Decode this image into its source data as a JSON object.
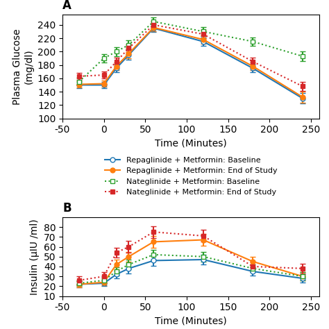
{
  "chart_data": [
    {
      "type": "line",
      "title": "A",
      "xlabel": "Time (Minutes)",
      "ylabel": "Plasma Glucose\n(mg/dl)",
      "x": [
        -30,
        0,
        15,
        30,
        60,
        120,
        180,
        240
      ],
      "xlim": [
        -50,
        260
      ],
      "xticks": [
        -50,
        0,
        50,
        100,
        150,
        200,
        250
      ],
      "ylim": [
        100,
        255
      ],
      "yticks": [
        100,
        120,
        140,
        160,
        180,
        200,
        220,
        240
      ],
      "legend": "upper center",
      "series": [
        {
          "name": "Repaglinide + Metformin: Baseline",
          "marker": "circle_open",
          "line_style": "solid",
          "values": [
            150,
            150,
            175,
            195,
            235,
            215,
            175,
            130
          ],
          "errors": [
            5,
            5,
            6,
            7,
            6,
            6,
            6,
            8
          ]
        },
        {
          "name": "Repaglinide + Metformin: End of Study",
          "marker": "circle",
          "line_style": "solid",
          "values": [
            151,
            152,
            178,
            197,
            236,
            218,
            178,
            132
          ],
          "errors": [
            5,
            5,
            6,
            7,
            6,
            6,
            6,
            8
          ]
        },
        {
          "name": "Nateglinide + Metformin: Baseline",
          "marker": "square_open",
          "line_style": "dotted",
          "values": [
            155,
            190,
            200,
            210,
            245,
            230,
            215,
            193
          ],
          "errors": [
            6,
            6,
            7,
            7,
            6,
            7,
            6,
            7
          ]
        },
        {
          "name": "Nateglinide + Metformin: End of Study",
          "marker": "square",
          "line_style": "dotted",
          "values": [
            163,
            165,
            185,
            205,
            240,
            226,
            185,
            148
          ],
          "errors": [
            5,
            5,
            6,
            6,
            5,
            6,
            6,
            7
          ]
        }
      ]
    },
    {
      "type": "line",
      "title": "B",
      "xlabel": "Time (Minutes)",
      "ylabel": "Insulin (μIU /ml)",
      "x": [
        -30,
        0,
        15,
        30,
        60,
        120,
        180,
        240
      ],
      "xlim": [
        -50,
        260
      ],
      "xticks": [
        -50,
        0,
        50,
        100,
        150,
        200,
        250
      ],
      "ylim": [
        10,
        90
      ],
      "yticks": [
        10,
        20,
        30,
        40,
        50,
        60,
        70,
        80
      ],
      "series": [
        {
          "name": "Repaglinide + Metformin: Baseline",
          "marker": "circle_open",
          "line_style": "solid",
          "values": [
            22,
            23,
            32,
            38,
            46,
            47,
            35,
            28
          ],
          "errors": [
            3,
            3,
            4,
            5,
            5,
            5,
            4,
            4
          ]
        },
        {
          "name": "Repaglinide + Metformin: End of Study",
          "marker": "circle",
          "line_style": "solid",
          "values": [
            22,
            24,
            42,
            50,
            65,
            67,
            45,
            30
          ],
          "errors": [
            3,
            3,
            5,
            5,
            6,
            6,
            5,
            4
          ]
        },
        {
          "name": "Nateglinide + Metformin: Baseline",
          "marker": "square_open",
          "line_style": "dotted",
          "values": [
            23,
            26,
            35,
            42,
            52,
            50,
            38,
            30
          ],
          "errors": [
            3,
            3,
            4,
            5,
            5,
            5,
            4,
            4
          ]
        },
        {
          "name": "Nateglinide + Metformin: End of Study",
          "marker": "square",
          "line_style": "dotted",
          "values": [
            26,
            30,
            54,
            60,
            75,
            71,
            40,
            38
          ],
          "errors": [
            4,
            4,
            5,
            6,
            6,
            6,
            5,
            5
          ]
        }
      ]
    }
  ]
}
